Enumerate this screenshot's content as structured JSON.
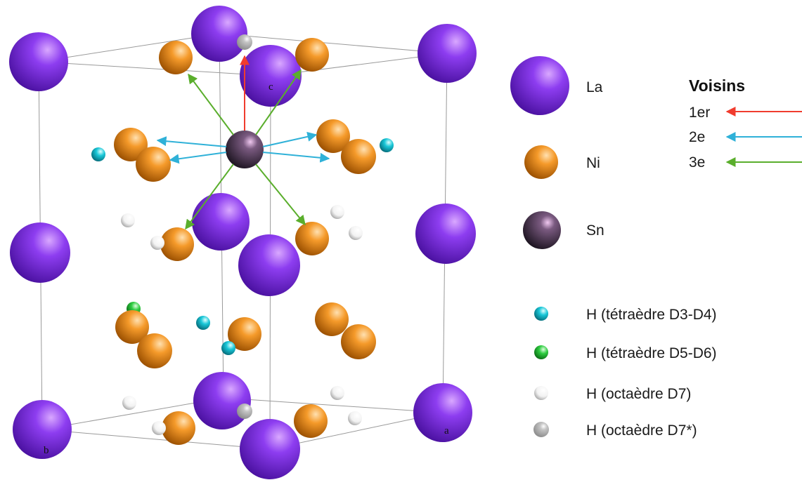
{
  "axis_labels": {
    "a": "a",
    "b": "b",
    "c": "c"
  },
  "legend": {
    "atoms": [
      {
        "id": "la",
        "label": "La",
        "color": "#7f2fe0"
      },
      {
        "id": "ni",
        "label": "Ni",
        "color": "#f28a18"
      },
      {
        "id": "sn",
        "label": "Sn",
        "color": "#3a2a3a"
      }
    ],
    "hydrogen": [
      {
        "id": "h-d3d4",
        "label": "H (tétraèdre D3-D4)",
        "color": "#19c7d8"
      },
      {
        "id": "h-d5d6",
        "label": "H (tétraèdre D5-D6)",
        "color": "#2ecc40"
      },
      {
        "id": "h-d7",
        "label": "H (octaèdre D7)",
        "color": "#f4f4f4"
      },
      {
        "id": "h-d7star",
        "label": "H (octaèdre D7*)",
        "color": "#bdbdbd"
      }
    ]
  },
  "neighbors": {
    "title": "Voisins",
    "items": [
      {
        "label": "1er",
        "color": "#f03c2e"
      },
      {
        "label": "2e",
        "color": "#2fb1d8"
      },
      {
        "label": "3e",
        "color": "#5aae2c"
      }
    ]
  }
}
